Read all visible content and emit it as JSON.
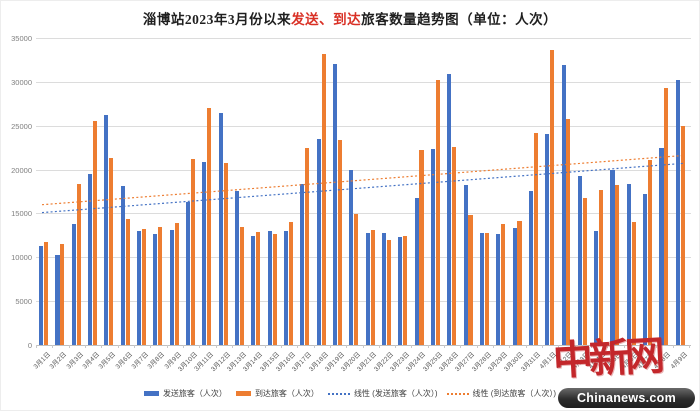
{
  "title": {
    "pre": "淄博站2023年3月份以来",
    "highlight": "发送、到达",
    "post": "旅客数量趋势图（单位：人次）"
  },
  "colors": {
    "send_blue": "#4472C4",
    "arrive_orange": "#ED7D31",
    "title_red": "#D93025",
    "gridline": "#DCDCDC",
    "axis_text": "#7F7F7F",
    "xlabel_text": "#595959",
    "logo_red": "#C3272B",
    "banner_bg": "#2D2D2D"
  },
  "y_axis": {
    "ticks": [
      "35000",
      "30000",
      "25000",
      "20000",
      "15000",
      "10000",
      "5000",
      "0"
    ],
    "max": 35000,
    "min": 0,
    "step": 5000
  },
  "legend": [
    {
      "label": "发送旅客（人次）",
      "marker": "bar",
      "color": "#4472C4"
    },
    {
      "label": "到达旅客（人次）",
      "marker": "bar",
      "color": "#ED7D31"
    },
    {
      "label": "线性 (发送旅客（人次）)",
      "marker": "dotted",
      "color": "#4472C4"
    },
    {
      "label": "线性 (到达旅客（人次）)",
      "marker": "dotted",
      "color": "#ED7D31"
    }
  ],
  "watermark": {
    "logo_text": "中新网",
    "banner_text": "Chinanews.com"
  },
  "chart_data": {
    "type": "bar",
    "title": "淄博站2023年3月份以来发送、到达旅客数量趋势图（单位：人次）",
    "ylabel": "",
    "xlabel": "",
    "ylim": [
      0,
      35000
    ],
    "y_tick_step": 5000,
    "grid": "horizontal",
    "legend_position": "bottom",
    "categories": [
      "3月1日",
      "3月2日",
      "3月3日",
      "3月4日",
      "3月5日",
      "3月6日",
      "3月7日",
      "3月8日",
      "3月9日",
      "3月10日",
      "3月11日",
      "3月12日",
      "3月13日",
      "3月14日",
      "3月15日",
      "3月16日",
      "3月17日",
      "3月18日",
      "3月19日",
      "3月20日",
      "3月21日",
      "3月22日",
      "3月23日",
      "3月24日",
      "3月25日",
      "3月26日",
      "3月27日",
      "3月28日",
      "3月29日",
      "3月30日",
      "3月31日",
      "4月1日",
      "4月2日",
      "4月3日",
      "4月4日",
      "4月5日",
      "4月6日",
      "4月7日",
      "4月8日",
      "4月9日"
    ],
    "series": [
      {
        "name": "发送旅客（人次）",
        "color": "#4472C4",
        "values": [
          11300,
          10300,
          13800,
          19500,
          26200,
          18100,
          13000,
          12700,
          13100,
          16300,
          20900,
          26400,
          17600,
          12400,
          13000,
          13000,
          18300,
          23500,
          32000,
          19900,
          12800,
          12800,
          12300,
          16800,
          22300,
          30900,
          18200,
          12800,
          12700,
          13300,
          17600,
          24000,
          31900,
          19300,
          13000,
          19900,
          18400,
          17200,
          22500,
          30200
        ]
      },
      {
        "name": "到达旅客（人次）",
        "color": "#ED7D31",
        "values": [
          11700,
          11500,
          18400,
          25500,
          21300,
          14400,
          13200,
          13400,
          13900,
          21200,
          27000,
          20800,
          13400,
          12900,
          12600,
          14000,
          22500,
          33200,
          23400,
          14900,
          13100,
          12000,
          12400,
          22200,
          30200,
          22600,
          14800,
          12800,
          13800,
          14100,
          24200,
          33600,
          25800,
          16800,
          17700,
          18200,
          14000,
          21100,
          29300,
          25000
        ]
      }
    ],
    "trendlines": [
      {
        "name": "线性 (发送旅客（人次）)",
        "color": "#4472C4",
        "start": 15100,
        "end": 20700
      },
      {
        "name": "线性 (到达旅客（人次）)",
        "color": "#ED7D31",
        "start": 16000,
        "end": 21600
      }
    ]
  }
}
